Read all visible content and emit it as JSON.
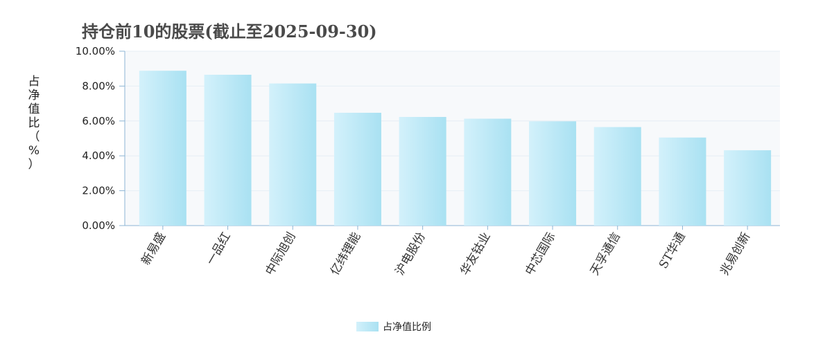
{
  "chart_data": {
    "type": "bar",
    "title": "持仓前10的股票(截止至2025-09-30)",
    "ylabel": "占净值比（%）",
    "xlabel": "",
    "ylim": [
      0,
      10
    ],
    "yticks": [
      "0.00%",
      "2.00%",
      "4.00%",
      "6.00%",
      "8.00%",
      "10.00%"
    ],
    "categories": [
      "新易盛",
      "一品红",
      "中际旭创",
      "亿纬锂能",
      "沪电股份",
      "华友钴业",
      "中芯国际",
      "天孚通信",
      "ST华通",
      "兆易创新"
    ],
    "series": [
      {
        "name": "占净值比例",
        "values": [
          8.88,
          8.65,
          8.15,
          6.47,
          6.23,
          6.13,
          5.98,
          5.65,
          5.05,
          4.32
        ]
      }
    ],
    "grid": true,
    "legend": "bottom-center",
    "colors": {
      "bar_light": "#d3f1fb",
      "bar_dark": "#a9e1f2",
      "axis": "#8cb4d4",
      "grid": "#e6eef5",
      "plot_bg": "#f7f9fb"
    }
  }
}
